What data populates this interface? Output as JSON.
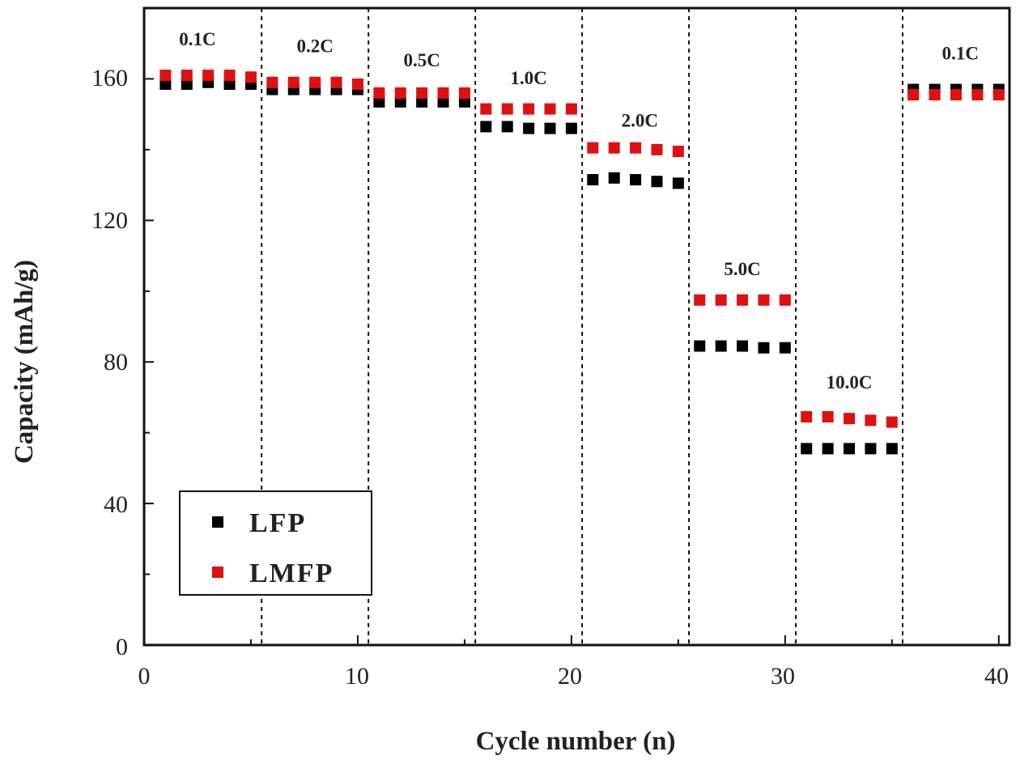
{
  "chart_data": {
    "type": "scatter",
    "xlabel": "Cycle number (n)",
    "ylabel": "Capacity (mAh/g)",
    "xlim": [
      0,
      40.5
    ],
    "ylim": [
      0,
      180
    ],
    "xticks": [
      0,
      10,
      20,
      30,
      40
    ],
    "yticks": [
      0,
      40,
      80,
      120,
      160
    ],
    "grid": false,
    "legend_position": "bottom-left",
    "rate_dividers": [
      5.5,
      10.5,
      15.5,
      20.5,
      25.5,
      30.5,
      35.5
    ],
    "rate_labels": [
      {
        "text": "0.1C",
        "x": 2.5,
        "y": 169.5
      },
      {
        "text": "0.2C",
        "x": 8.0,
        "y": 167.5
      },
      {
        "text": "0.5C",
        "x": 13.0,
        "y": 163.5
      },
      {
        "text": "1.0C",
        "x": 18.0,
        "y": 158.5
      },
      {
        "text": "2.0C",
        "x": 23.2,
        "y": 146.5
      },
      {
        "text": "5.0C",
        "x": 28.0,
        "y": 104.5
      },
      {
        "text": "10.0C",
        "x": 33.0,
        "y": 72.5
      },
      {
        "text": "0.1C",
        "x": 38.2,
        "y": 165.5
      }
    ],
    "series": [
      {
        "name": "LFP",
        "color": "#000000",
        "x": [
          1,
          2,
          3,
          4,
          5,
          6,
          7,
          8,
          9,
          10,
          11,
          12,
          13,
          14,
          15,
          16,
          17,
          18,
          19,
          20,
          21,
          22,
          23,
          24,
          25,
          26,
          27,
          28,
          29,
          30,
          31,
          32,
          33,
          34,
          35,
          36,
          37,
          38,
          39,
          40
        ],
        "values": [
          158.5,
          158.5,
          159,
          158.5,
          158.5,
          157,
          157,
          157,
          157,
          157,
          153.5,
          153.5,
          153.5,
          153.5,
          153.5,
          146.5,
          146.5,
          146,
          146,
          146,
          131.5,
          132,
          131.5,
          131,
          130.5,
          84.5,
          84.5,
          84.5,
          84,
          84,
          55.5,
          55.5,
          55.5,
          55.5,
          55.5,
          157,
          157,
          157,
          157,
          157
        ]
      },
      {
        "name": "LMFP",
        "color": "#e01010",
        "x": [
          1,
          2,
          3,
          4,
          5,
          6,
          7,
          8,
          9,
          10,
          11,
          12,
          13,
          14,
          15,
          16,
          17,
          18,
          19,
          20,
          21,
          22,
          23,
          24,
          25,
          26,
          27,
          28,
          29,
          30,
          31,
          32,
          33,
          34,
          35,
          36,
          37,
          38,
          39,
          40
        ],
        "values": [
          161,
          161,
          161,
          161,
          160.5,
          159,
          159,
          159,
          159,
          158.5,
          156,
          156,
          156,
          156,
          156,
          151.5,
          151.5,
          151.5,
          151.5,
          151.5,
          140.5,
          140.5,
          140.5,
          140,
          139.5,
          97.5,
          97.5,
          97.5,
          97.5,
          97.5,
          64.5,
          64.5,
          64,
          63.5,
          63,
          155.5,
          155.5,
          155.5,
          155.5,
          155.5
        ]
      }
    ]
  }
}
